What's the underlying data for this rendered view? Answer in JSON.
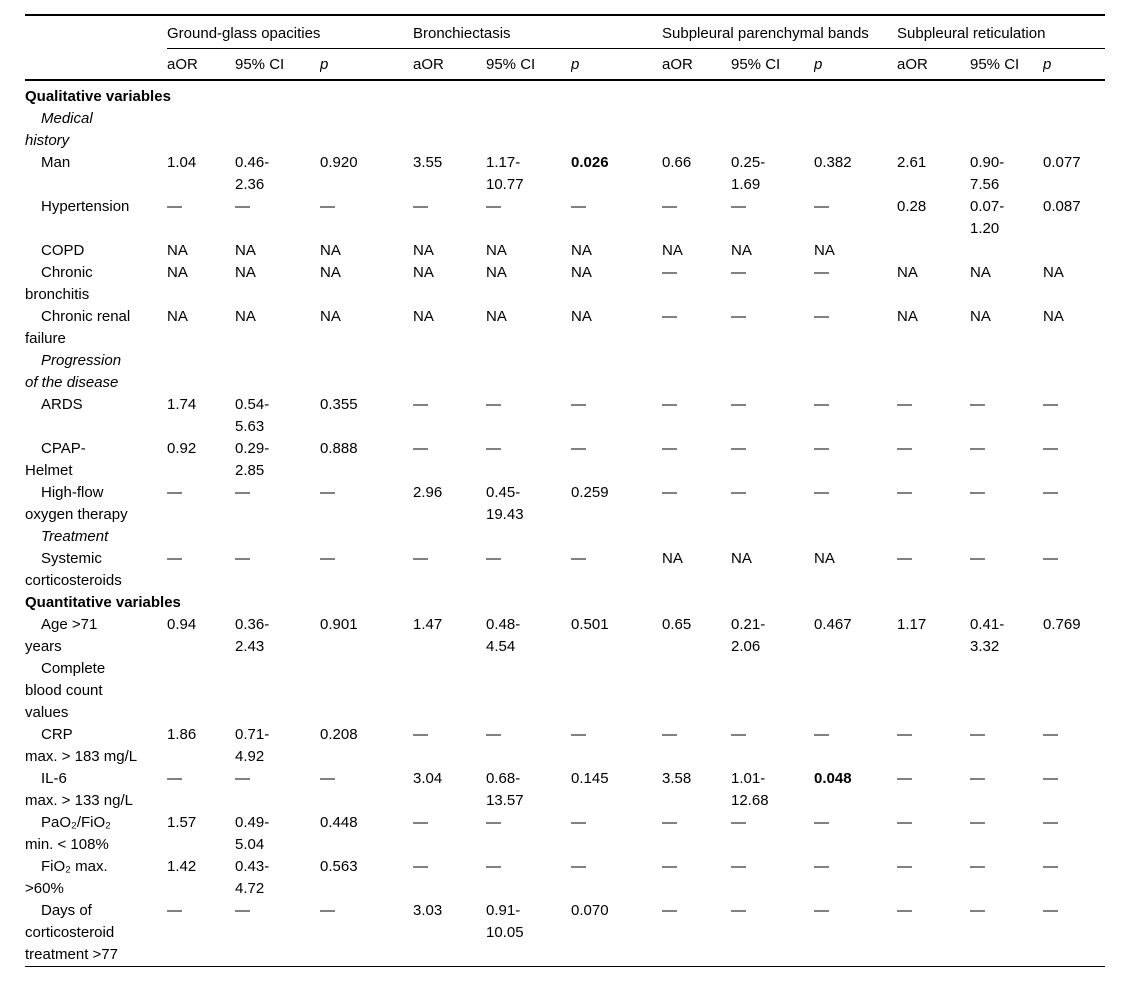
{
  "colors": {
    "background": "#ffffff",
    "text": "#000000",
    "rule": "#000000"
  },
  "table": {
    "column_groups": [
      {
        "label": "Ground-glass opacities"
      },
      {
        "label": "Bronchiectasis"
      },
      {
        "label": "Subpleural parenchymal bands"
      },
      {
        "label": "Subpleural reticulation"
      }
    ],
    "sub_headers": [
      "aOR",
      "95% CI",
      "p"
    ],
    "rows": [
      {
        "type": "section",
        "label": "Qualitative variables"
      },
      {
        "type": "subsection",
        "label": "Medical\nhistory"
      },
      {
        "type": "data",
        "label": "Man",
        "cells": [
          "1.04",
          "0.46-\n2.36",
          "0.920",
          "3.55",
          "1.17-\n10.77",
          "0.026",
          "0.66",
          "0.25-\n1.69",
          "0.382",
          "2.61",
          "0.90-\n7.56",
          "0.077"
        ],
        "bold": [
          5
        ]
      },
      {
        "type": "data",
        "label": "Hypertension",
        "cells": [
          "—",
          "—",
          "—",
          "—",
          "—",
          "—",
          "—",
          "—",
          "—",
          "0.28",
          "0.07-\n1.20",
          "0.087"
        ]
      },
      {
        "type": "data",
        "label": "COPD",
        "cells": [
          "NA",
          "NA",
          "NA",
          "NA",
          "NA",
          "NA",
          "NA",
          "NA",
          "NA",
          "",
          "",
          ""
        ]
      },
      {
        "type": "data",
        "label": "Chronic\nbronchitis",
        "cells": [
          "NA",
          "NA",
          "NA",
          "NA",
          "NA",
          "NA",
          "—",
          "—",
          "—",
          "NA",
          "NA",
          "NA"
        ]
      },
      {
        "type": "data",
        "label": "Chronic renal\nfailure",
        "cells": [
          "NA",
          "NA",
          "NA",
          "NA",
          "NA",
          "NA",
          "—",
          "—",
          "—",
          "NA",
          "NA",
          "NA"
        ]
      },
      {
        "type": "subsection",
        "label": "Progression\nof the disease"
      },
      {
        "type": "data",
        "label": "ARDS",
        "cells": [
          "1.74",
          "0.54-\n5.63",
          "0.355",
          "—",
          "—",
          "—",
          "—",
          "—",
          "—",
          "—",
          "—",
          "—"
        ]
      },
      {
        "type": "data",
        "label": "CPAP-\nHelmet",
        "cells": [
          "0.92",
          "0.29-\n2.85",
          "0.888",
          "—",
          "—",
          "—",
          "—",
          "—",
          "—",
          "—",
          "—",
          "—"
        ]
      },
      {
        "type": "data",
        "label": "High-flow\noxygen therapy",
        "cells": [
          "—",
          "—",
          "—",
          "2.96",
          "0.45-\n19.43",
          "0.259",
          "—",
          "—",
          "—",
          "—",
          "—",
          "—"
        ]
      },
      {
        "type": "subsection",
        "label": "Treatment"
      },
      {
        "type": "data",
        "label": "Systemic\ncorticosteroids",
        "cells": [
          "—",
          "—",
          "—",
          "—",
          "—",
          "—",
          "NA",
          "NA",
          "NA",
          "—",
          "—",
          "—"
        ]
      },
      {
        "type": "section",
        "label": "Quantitative variables"
      },
      {
        "type": "data",
        "label": "Age >71\nyears",
        "cells": [
          "0.94",
          "0.36-\n2.43",
          "0.901",
          "1.47",
          "0.48-\n4.54",
          "0.501",
          "0.65",
          "0.21-\n2.06",
          "0.467",
          "1.17",
          "0.41-\n3.32",
          "0.769"
        ]
      },
      {
        "type": "data",
        "label": "Complete\nblood count\nvalues",
        "cells": [
          "",
          "",
          "",
          "",
          "",
          "",
          "",
          "",
          "",
          "",
          "",
          ""
        ]
      },
      {
        "type": "data",
        "label": "CRP\nmax. > 183 mg/L",
        "cells": [
          "1.86",
          "0.71-\n4.92",
          "0.208",
          "—",
          "—",
          "—",
          "—",
          "—",
          "—",
          "—",
          "—",
          "—"
        ]
      },
      {
        "type": "data",
        "label": "IL-6\nmax. > 133 ng/L",
        "cells": [
          "—",
          "—",
          "—",
          "3.04",
          "0.68-\n13.57",
          "0.145",
          "3.58",
          "1.01-\n12.68",
          "0.048",
          "—",
          "—",
          "—"
        ],
        "bold": [
          8
        ]
      },
      {
        "type": "data",
        "label": "PaO₂/FiO₂\nmin. < 108%",
        "cells": [
          "1.57",
          "0.49-\n5.04",
          "0.448",
          "—",
          "—",
          "—",
          "—",
          "—",
          "—",
          "—",
          "—",
          "—"
        ]
      },
      {
        "type": "data",
        "label": "FiO₂ max.\n>60%",
        "cells": [
          "1.42",
          "0.43-\n4.72",
          "0.563",
          "—",
          "—",
          "—",
          "—",
          "—",
          "—",
          "—",
          "—",
          "—"
        ]
      },
      {
        "type": "data",
        "label": "Days of\ncorticosteroid\ntreatment >77",
        "cells": [
          "—",
          "—",
          "—",
          "3.03",
          "0.91-\n10.05",
          "0.070",
          "—",
          "—",
          "—",
          "—",
          "—",
          "—"
        ]
      }
    ]
  }
}
